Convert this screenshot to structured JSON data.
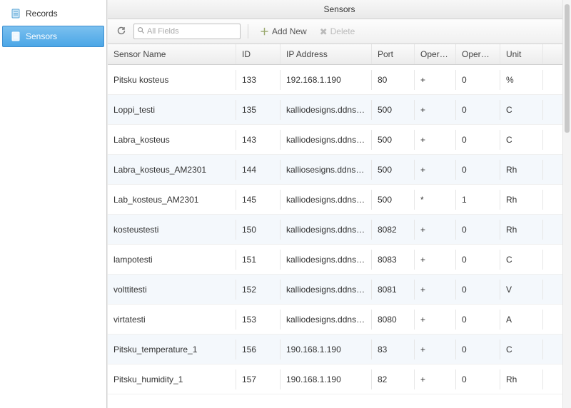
{
  "sidebar": {
    "items": [
      {
        "label": "Records",
        "active": false
      },
      {
        "label": "Sensors",
        "active": true
      }
    ]
  },
  "panel": {
    "title": "Sensors"
  },
  "toolbar": {
    "search_placeholder": "All Fields",
    "add_label": "Add New",
    "delete_label": "Delete"
  },
  "grid": {
    "columns": [
      {
        "label": "Sensor Name",
        "key": "name"
      },
      {
        "label": "ID",
        "key": "id"
      },
      {
        "label": "IP Address",
        "key": "ip"
      },
      {
        "label": "Port",
        "key": "port"
      },
      {
        "label": "Operati...",
        "key": "operation"
      },
      {
        "label": "Operand",
        "key": "operand"
      },
      {
        "label": "Unit",
        "key": "unit"
      }
    ],
    "rows": [
      {
        "name": "Pitsku kosteus",
        "id": "133",
        "ip": "192.168.1.190",
        "port": "80",
        "operation": "+",
        "operand": "0",
        "unit": "%"
      },
      {
        "name": "Loppi_testi",
        "id": "135",
        "ip": "kalliodesigns.ddns.net",
        "port": "500",
        "operation": "+",
        "operand": "0",
        "unit": "C"
      },
      {
        "name": "Labra_kosteus",
        "id": "143",
        "ip": "kalliodesigns.ddns.net",
        "port": "500",
        "operation": "+",
        "operand": "0",
        "unit": "C"
      },
      {
        "name": "Labra_kosteus_AM2301",
        "id": "144",
        "ip": "kalliosesigns.ddns.net",
        "port": "500",
        "operation": "+",
        "operand": "0",
        "unit": "Rh"
      },
      {
        "name": "Lab_kosteus_AM2301",
        "id": "145",
        "ip": "kalliodesigns.ddns.net",
        "port": "500",
        "operation": "*",
        "operand": "1",
        "unit": "Rh"
      },
      {
        "name": "kosteustesti",
        "id": "150",
        "ip": "kalliodesigns.ddns.net",
        "port": "8082",
        "operation": "+",
        "operand": "0",
        "unit": "Rh"
      },
      {
        "name": "lampotesti",
        "id": "151",
        "ip": "kalliodesigns.ddns.net",
        "port": "8083",
        "operation": "+",
        "operand": "0",
        "unit": "C"
      },
      {
        "name": "volttitesti",
        "id": "152",
        "ip": "kalliodesigns.ddns.net",
        "port": "8081",
        "operation": "+",
        "operand": "0",
        "unit": "V"
      },
      {
        "name": "virtatesti",
        "id": "153",
        "ip": "kalliodesigns.ddns.net",
        "port": "8080",
        "operation": "+",
        "operand": "0",
        "unit": "A"
      },
      {
        "name": "Pitsku_temperature_1",
        "id": "156",
        "ip": "190.168.1.190",
        "port": "83",
        "operation": "+",
        "operand": "0",
        "unit": "C"
      },
      {
        "name": "Pitsku_humidity_1",
        "id": "157",
        "ip": "190.168.1.190",
        "port": "82",
        "operation": "+",
        "operand": "0",
        "unit": "Rh"
      }
    ]
  },
  "colors": {
    "row_alt": "#f4f8fc",
    "header_grad_top": "#fbfbfb",
    "header_grad_bot": "#ececec",
    "active_nav_top": "#7bc0ef",
    "active_nav_bot": "#4ba6e6",
    "border": "#d0d0d0"
  }
}
